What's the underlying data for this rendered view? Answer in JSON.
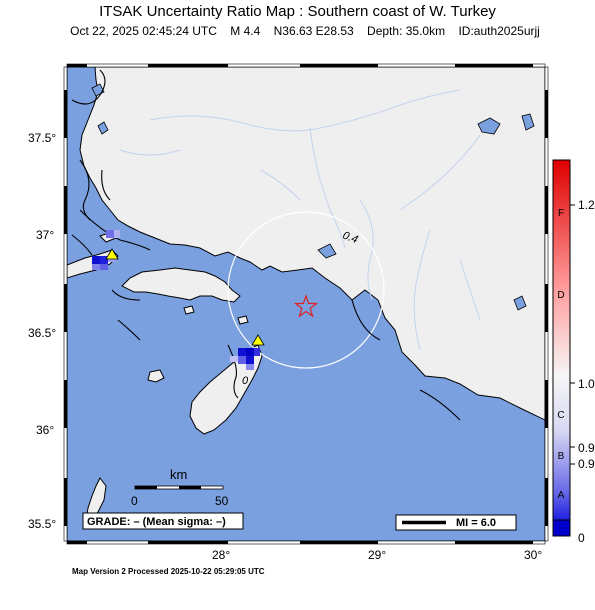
{
  "title": "ITSAK Uncertainty Ratio Map : Southern coast of W. Turkey",
  "event_line": {
    "datetime": "Oct 22, 2025 02:45:24 UTC",
    "magnitude": "M 4.4",
    "location": "N36.63 E28.53",
    "depth": "Depth: 35.0km",
    "id": "ID:auth2025urjj"
  },
  "axes": {
    "lat_ticks": [
      "37.5°",
      "37°",
      "36.5°",
      "36°",
      "35.5°"
    ],
    "lon_ticks": [
      "28°",
      "29°",
      "30°"
    ]
  },
  "contour_labels": [
    "0.4",
    "0"
  ],
  "scale_bar": {
    "unit": "km",
    "min": "0",
    "max": "50"
  },
  "grade_box": "GRADE: – (Mean sigma: –)",
  "legend_box": "MI = 6.0",
  "colorbar": {
    "letters": [
      "F",
      "D",
      "C",
      "B",
      "A"
    ],
    "values": [
      "1.2",
      "1.0",
      "0.9",
      "0.9",
      "0"
    ],
    "colors": {
      "top": "#e00000",
      "mid": "#f4f4f4",
      "bottom": "#0000cc"
    }
  },
  "colors": {
    "sea": "#7aa0e0",
    "land": "#efefef",
    "river": "#c2d4ee",
    "epicenter": "#e02020",
    "station": "#ffff00"
  },
  "icons": [
    "epicenter-star-icon",
    "station-triangle-icon"
  ],
  "footer": "Map Version 2 Processed 2025-10-22 05:29:05 UTC"
}
